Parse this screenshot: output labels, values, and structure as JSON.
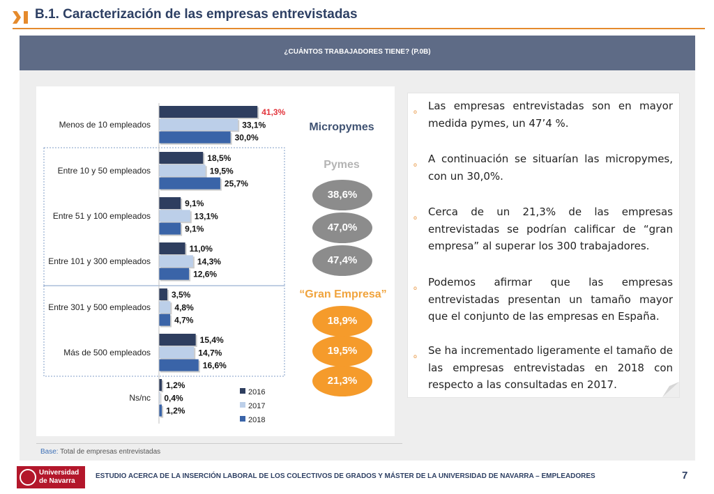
{
  "header": {
    "title": "B.1. Caracterización de las empresas entrevistadas",
    "banner": "¿CUÁNTOS TRABAJADORES TIENE? (P.0B)",
    "accent_color": "#e58a2c"
  },
  "chart_data": {
    "type": "bar",
    "orientation": "horizontal",
    "categories": [
      "Menos de 10 empleados",
      "Entre 10 y 50 empleados",
      "Entre 51 y 100 empleados",
      "Entre 101 y 300 empleados",
      "Entre 301 y 500 empleados",
      "Más de 500 empleados",
      "Ns/nc"
    ],
    "series": [
      {
        "name": "2016",
        "color": "#2e3e5f",
        "values": [
          41.3,
          18.5,
          9.1,
          11.0,
          3.5,
          15.4,
          1.2
        ],
        "labels": [
          "41,3%",
          "18,5%",
          "9,1%",
          "11,0%",
          "3,5%",
          "15,4%",
          "1,2%"
        ]
      },
      {
        "name": "2017",
        "color": "#bccfe9",
        "values": [
          33.1,
          19.5,
          13.1,
          14.3,
          4.8,
          14.7,
          0.4
        ],
        "labels": [
          "33,1%",
          "19,5%",
          "13,1%",
          "14,3%",
          "4,8%",
          "14,7%",
          "0,4%"
        ]
      },
      {
        "name": "2018",
        "color": "#3a64a8",
        "values": [
          30.0,
          25.7,
          9.1,
          12.6,
          4.7,
          16.6,
          1.2
        ],
        "labels": [
          "30,0%",
          "25,7%",
          "9,1%",
          "12,6%",
          "4,7%",
          "16,6%",
          "1,2%"
        ]
      }
    ],
    "highlight_color": "#e2353c",
    "legend_position": "bottom-right"
  },
  "segments": {
    "micropymes_label": "Micropymes",
    "pymes_label": "Pymes",
    "gran_label": "“Gran Empresa”",
    "pymes_values": [
      "38,6%",
      "47,0%",
      "47,4%"
    ],
    "gran_values": [
      "18,9%",
      "19,5%",
      "21,3%"
    ]
  },
  "bullets": [
    "Las empresas entrevistadas son en mayor medida pymes, un 47’4 %.",
    "A continuación se situarían las micropymes, con un 30,0%.",
    "Cerca de un 21,3% de las empresas entrevistadas se podrían calificar de “gran empresa” al superar los 300 trabajadores.",
    "Podemos afirmar que las empresas entrevistadas presentan un tamaño mayor que el conjunto de las empresas en España.",
    "Se ha incrementado ligeramente el tamaño de las empresas entrevistadas en  2018 con respecto a las consultadas en 2017."
  ],
  "bullet_marker": "o",
  "source": {
    "key": "Base:",
    "text": " Total de empresas entrevistadas"
  },
  "footer": {
    "logo_line1": "Universidad",
    "logo_line2": "de Navarra",
    "text": "ESTUDIO ACERCA DE LA INSERCIÓN LABORAL DE LOS COLECTIVOS DE GRADOS Y MÁSTER DE LA UNIVERSIDAD DE NAVARRA – EMPLEADORES",
    "page": "7"
  }
}
